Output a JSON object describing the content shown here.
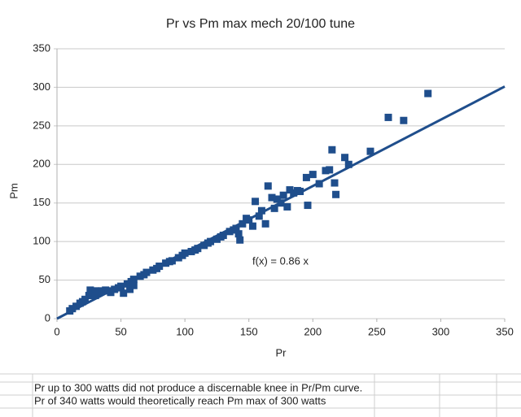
{
  "chart_data": {
    "type": "scatter",
    "title": "Pr vs Pm max mech 20/100 tune",
    "x_label": "Pr",
    "y_label": "Pm",
    "x": [
      10,
      12,
      15,
      18,
      20,
      22,
      25,
      26,
      28,
      30,
      30,
      32,
      35,
      38,
      40,
      42,
      45,
      48,
      50,
      52,
      55,
      57,
      58,
      60,
      60,
      65,
      68,
      70,
      75,
      78,
      80,
      85,
      88,
      90,
      95,
      98,
      100,
      105,
      108,
      110,
      115,
      118,
      120,
      125,
      128,
      130,
      135,
      138,
      140,
      142,
      143,
      145,
      148,
      150,
      153,
      155,
      158,
      160,
      163,
      165,
      168,
      170,
      172,
      175,
      177,
      180,
      182,
      185,
      188,
      190,
      195,
      196,
      200,
      205,
      210,
      213,
      215,
      217,
      218,
      225,
      228,
      245,
      259,
      271,
      290
    ],
    "values": [
      10,
      13,
      16,
      20,
      22,
      25,
      30,
      37,
      35,
      36,
      30,
      33,
      36,
      37,
      36,
      34,
      38,
      40,
      42,
      33,
      45,
      38,
      48,
      51,
      43,
      55,
      57,
      60,
      63,
      65,
      68,
      72,
      74,
      75,
      79,
      82,
      85,
      87,
      89,
      91,
      95,
      98,
      100,
      103,
      106,
      108,
      113,
      115,
      117,
      110,
      102,
      123,
      130,
      128,
      120,
      152,
      133,
      140,
      123,
      172,
      157,
      143,
      155,
      150,
      160,
      145,
      167,
      163,
      166,
      165,
      183,
      147,
      187,
      175,
      192,
      193,
      219,
      176,
      161,
      209,
      200,
      217,
      261,
      257,
      292
    ],
    "color": "#1f4e8c",
    "xlim": [
      0,
      350
    ],
    "xticks": [
      0,
      50,
      100,
      150,
      200,
      250,
      300,
      350
    ],
    "ylim": [
      0,
      350
    ],
    "yticks": [
      0,
      50,
      100,
      150,
      200,
      250,
      300,
      350
    ],
    "grid": true,
    "trendline": {
      "slope": 0.86,
      "label": "f(x) = 0.86 x"
    }
  },
  "notes": [
    "Pr up to 300 watts did not produce a discernable knee in Pr/Pm curve.",
    "Pr of 340 watts would theoretically reach Pm max of 300 watts"
  ]
}
